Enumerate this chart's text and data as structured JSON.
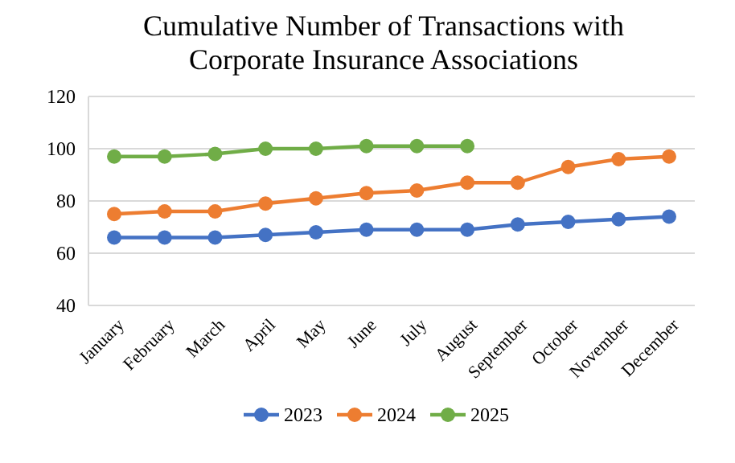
{
  "chart_data": {
    "type": "line",
    "title": "Cumulative Number of Transactions with\nCorporate Insurance Associations",
    "categories": [
      "January",
      "February",
      "March",
      "April",
      "May",
      "June",
      "July",
      "August",
      "September",
      "October",
      "November",
      "December"
    ],
    "series": [
      {
        "name": "2023",
        "color": "#4472c4",
        "values": [
          66,
          66,
          66,
          67,
          68,
          69,
          69,
          69,
          71,
          72,
          73,
          74
        ]
      },
      {
        "name": "2024",
        "color": "#ed7d31",
        "values": [
          75,
          76,
          76,
          79,
          81,
          83,
          84,
          87,
          87,
          93,
          96,
          97
        ]
      },
      {
        "name": "2025",
        "color": "#70ad47",
        "values": [
          97,
          97,
          98,
          100,
          100,
          101,
          101,
          101,
          null,
          null,
          null,
          null
        ]
      }
    ],
    "ylim": [
      40,
      120
    ],
    "yticks": [
      40,
      60,
      80,
      100,
      120
    ],
    "grid": "y",
    "legend": "bottom",
    "marker": "circle",
    "line_style": "solid"
  }
}
